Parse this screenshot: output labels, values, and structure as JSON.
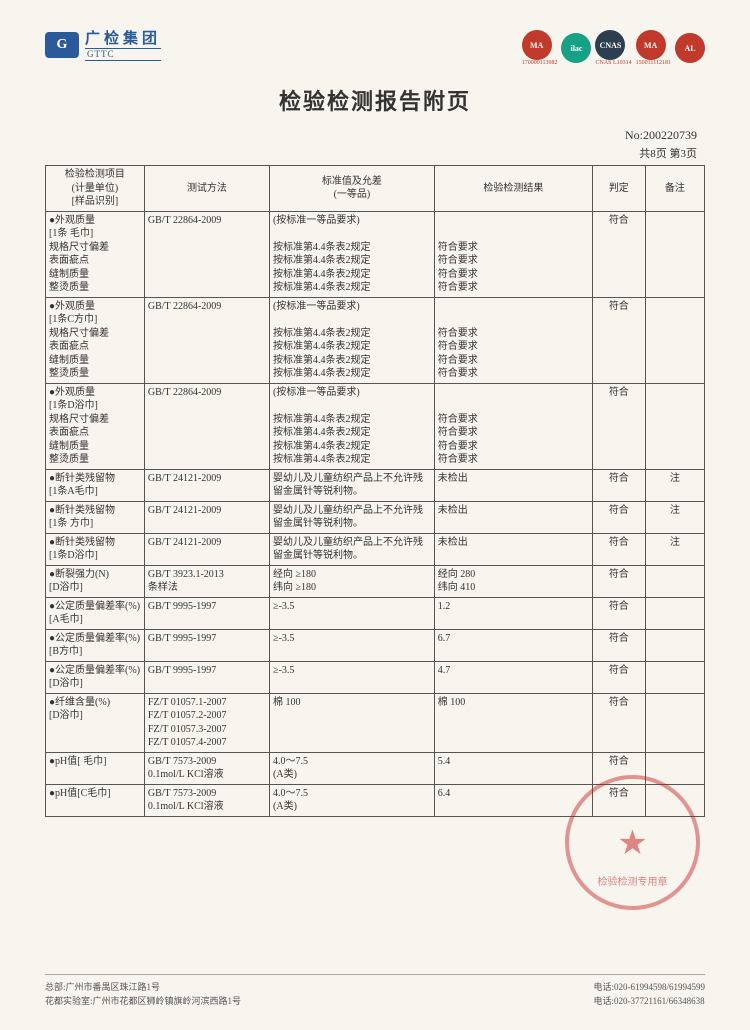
{
  "header": {
    "logo_cn": "广检集团",
    "logo_en": "GTTC",
    "cert_labels": [
      "MA",
      "ilac",
      "CNAS",
      "MA",
      "AL"
    ],
    "cert_sub1": "170000113982",
    "cert_sub2": "CNAS L10314",
    "cert_sub3": "150011112181"
  },
  "title": "检验检测报告附页",
  "doc_no": "No:200220739",
  "page_info": "共8页 第3页",
  "columns": {
    "c1": "检验检测项目\n(计量单位)\n[样品识别]",
    "c2": "测试方法",
    "c3": "标准值及允差\n(一等品)",
    "c4": "检验检测结果",
    "c5": "判定",
    "c6": "备注"
  },
  "rows": [
    {
      "c1": "●外观质量\n[1条 毛巾]\n规格尺寸偏差\n表面疵点\n缝制质量\n整烫质量",
      "c2": "GB/T 22864-2009",
      "c3": "(按标准一等品要求)\n\n按标准第4.4条表2规定\n按标准第4.4条表2规定\n按标准第4.4条表2规定\n按标准第4.4条表2规定",
      "c4": "\n\n符合要求\n符合要求\n符合要求\n符合要求",
      "c5": "符合",
      "c6": ""
    },
    {
      "c1": "●外观质量\n[1条C方巾]\n规格尺寸偏差\n表面疵点\n缝制质量\n整烫质量",
      "c2": "GB/T 22864-2009",
      "c3": "(按标准一等品要求)\n\n按标准第4.4条表2规定\n按标准第4.4条表2规定\n按标准第4.4条表2规定\n按标准第4.4条表2规定",
      "c4": "\n\n符合要求\n符合要求\n符合要求\n符合要求",
      "c5": "符合",
      "c6": ""
    },
    {
      "c1": "●外观质量\n[1条D浴巾]\n规格尺寸偏差\n表面疵点\n缝制质量\n整烫质量",
      "c2": "GB/T 22864-2009",
      "c3": "(按标准一等品要求)\n\n按标准第4.4条表2规定\n按标准第4.4条表2规定\n按标准第4.4条表2规定\n按标准第4.4条表2规定",
      "c4": "\n\n符合要求\n符合要求\n符合要求\n符合要求",
      "c5": "符合",
      "c6": ""
    },
    {
      "c1": "●断针类残留物\n[1条A毛巾]",
      "c2": "GB/T 24121-2009",
      "c3": "婴幼儿及儿童纺织产品上不允许残留金属针等锐利物。",
      "c4": "未检出",
      "c5": "符合",
      "c6": "注"
    },
    {
      "c1": "●断针类残留物\n[1条 方巾]",
      "c2": "GB/T 24121-2009",
      "c3": "婴幼儿及儿童纺织产品上不允许残留金属针等锐利物。",
      "c4": "未检出",
      "c5": "符合",
      "c6": "注"
    },
    {
      "c1": "●断针类残留物\n[1条D浴巾]",
      "c2": "GB/T 24121-2009",
      "c3": "婴幼儿及儿童纺织产品上不允许残留金属针等锐利物。",
      "c4": "未检出",
      "c5": "符合",
      "c6": "注"
    },
    {
      "c1": "●断裂强力(N)\n[D浴巾]",
      "c2": "GB/T 3923.1-2013\n条样法",
      "c3": "经向 ≥180\n纬向 ≥180",
      "c4": "经向 280\n纬向 410",
      "c5": "符合",
      "c6": ""
    },
    {
      "c1": "●公定质量偏差率(%)\n[A毛巾]",
      "c2": "GB/T 9995-1997",
      "c3": "≥-3.5",
      "c4": "1.2",
      "c5": "符合",
      "c6": ""
    },
    {
      "c1": "●公定质量偏差率(%)\n[B方巾]",
      "c2": "GB/T 9995-1997",
      "c3": "≥-3.5",
      "c4": "6.7",
      "c5": "符合",
      "c6": ""
    },
    {
      "c1": "●公定质量偏差率(%)\n[D浴巾]",
      "c2": "GB/T 9995-1997",
      "c3": "≥-3.5",
      "c4": "4.7",
      "c5": "符合",
      "c6": ""
    },
    {
      "c1": "●纤维含量(%)\n[D浴巾]",
      "c2": "FZ/T 01057.1-2007\nFZ/T 01057.2-2007\nFZ/T 01057.3-2007\nFZ/T 01057.4-2007",
      "c3": "棉      100",
      "c4": "棉      100",
      "c5": "符合",
      "c6": ""
    },
    {
      "c1": "●pH值[ 毛巾]",
      "c2": "GB/T 7573-2009\n0.1mol/L KCl溶液",
      "c3": "4.0～7.5\n(A类)",
      "c4": "5.4",
      "c5": "符合",
      "c6": ""
    },
    {
      "c1": "●pH值[C毛巾]",
      "c2": "GB/T 7573-2009\n0.1mol/L KCl溶液",
      "c3": "4.0～7.5\n(A类)",
      "c4": "6.4",
      "c5": "符合",
      "c6": ""
    }
  ],
  "stamp_text": "检验检测专用章",
  "footer": {
    "left1": "总部:广州市番禺区珠江路1号",
    "left2": "花都实验室:广州市花都区狮岭镇旗岭河滨西路1号",
    "right1": "电话:020-61994598/61994599",
    "right2": "电话:020-37721161/66348638"
  }
}
